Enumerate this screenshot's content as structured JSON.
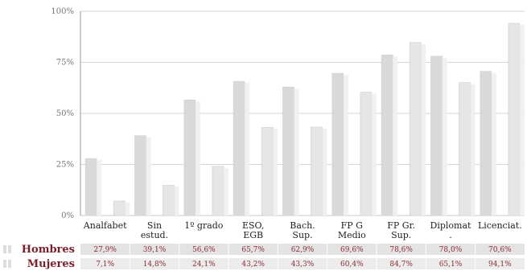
{
  "chart_data": {
    "type": "bar",
    "categories": [
      [
        "Analfabet"
      ],
      [
        "Sin",
        "estud."
      ],
      [
        "1º grado"
      ],
      [
        "ESO,",
        "EGB"
      ],
      [
        "Bach.",
        "Sup."
      ],
      [
        "FP G",
        "Medio"
      ],
      [
        "FP Gr.",
        "Sup."
      ],
      [
        "Diplomat",
        "."
      ],
      [
        "Licenciat."
      ]
    ],
    "series": [
      {
        "name": "Hombres",
        "values": [
          27.9,
          39.1,
          56.6,
          65.7,
          62.9,
          69.6,
          78.6,
          78.0,
          70.6
        ],
        "labels": [
          "27,9%",
          "39,1%",
          "56,6%",
          "65,7%",
          "62,9%",
          "69,6%",
          "78,6%",
          "78,0%",
          "70,6%"
        ],
        "color": "#d9d9d9"
      },
      {
        "name": "Mujeres",
        "values": [
          7.1,
          14.8,
          24.1,
          43.2,
          43.3,
          60.4,
          84.7,
          65.1,
          94.1
        ],
        "labels": [
          "7,1%",
          "14,8%",
          "24,1%",
          "43,2%",
          "43,3%",
          "60,4%",
          "84,7%",
          "65,1%",
          "94,1%"
        ],
        "color": "#e6e6e6"
      }
    ],
    "y_ticks": [
      {
        "value": 0,
        "label": "0%"
      },
      {
        "value": 25,
        "label": "25%"
      },
      {
        "value": 50,
        "label": "50%"
      },
      {
        "value": 75,
        "label": "75%"
      },
      {
        "value": 100,
        "label": "100%"
      }
    ],
    "ylim": [
      0,
      100
    ],
    "grid": true,
    "title": "",
    "xlabel": "",
    "ylabel": ""
  },
  "colors": {
    "grid": "#c8c8c8",
    "axis": "#9a9a9a",
    "table_bg_a": "#e3e3e3",
    "table_bg_b": "#ececec",
    "label_accent": "#7a1f2a"
  }
}
